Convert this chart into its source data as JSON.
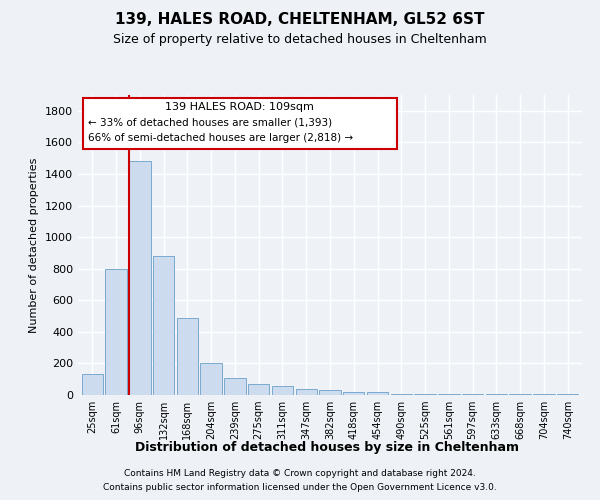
{
  "title1": "139, HALES ROAD, CHELTENHAM, GL52 6ST",
  "title2": "Size of property relative to detached houses in Cheltenham",
  "xlabel": "Distribution of detached houses by size in Cheltenham",
  "ylabel": "Number of detached properties",
  "categories": [
    "25sqm",
    "61sqm",
    "96sqm",
    "132sqm",
    "168sqm",
    "204sqm",
    "239sqm",
    "275sqm",
    "311sqm",
    "347sqm",
    "382sqm",
    "418sqm",
    "454sqm",
    "490sqm",
    "525sqm",
    "561sqm",
    "597sqm",
    "633sqm",
    "668sqm",
    "704sqm",
    "740sqm"
  ],
  "values": [
    130,
    800,
    1480,
    880,
    490,
    200,
    105,
    70,
    55,
    40,
    30,
    20,
    20,
    8,
    8,
    8,
    8,
    8,
    8,
    8,
    8
  ],
  "bar_color": "#ccdcee",
  "bar_edge_color": "#7aaacf",
  "highlight_index": 2,
  "red_line_color": "#cc0000",
  "ylim": [
    0,
    1900
  ],
  "yticks": [
    0,
    200,
    400,
    600,
    800,
    1000,
    1200,
    1400,
    1600,
    1800
  ],
  "annotation_title": "139 HALES ROAD: 109sqm",
  "annotation_line1": "← 33% of detached houses are smaller (1,393)",
  "annotation_line2": "66% of semi-detached houses are larger (2,818) →",
  "annotation_box_facecolor": "#ffffff",
  "annotation_border_color": "#cc0000",
  "footer1": "Contains HM Land Registry data © Crown copyright and database right 2024.",
  "footer2": "Contains public sector information licensed under the Open Government Licence v3.0.",
  "background_color": "#eef2f7",
  "grid_color": "#ffffff",
  "title1_fontsize": 11,
  "title2_fontsize": 9
}
